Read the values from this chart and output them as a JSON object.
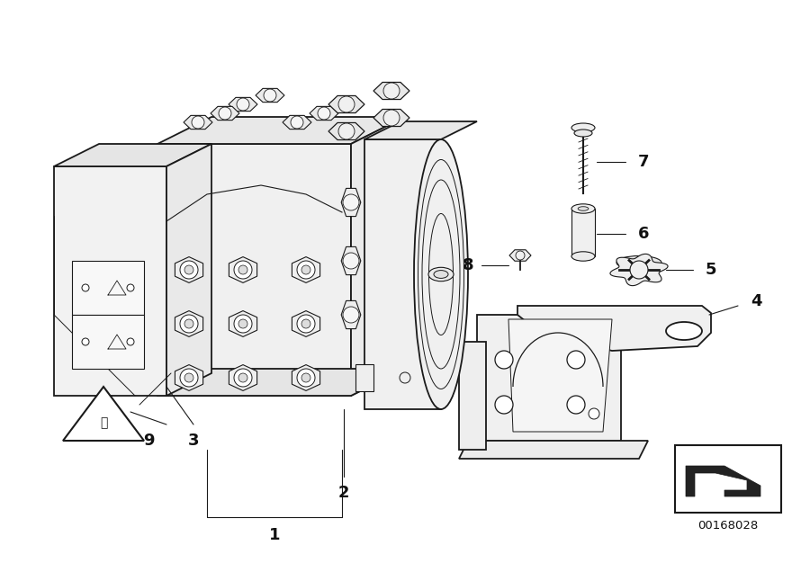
{
  "background_color": "#ffffff",
  "part_number": "00168028",
  "fig_width": 9.0,
  "fig_height": 6.36,
  "line_color": "#1a1a1a",
  "fill_color": "#f5f5f5",
  "lw": 1.0
}
